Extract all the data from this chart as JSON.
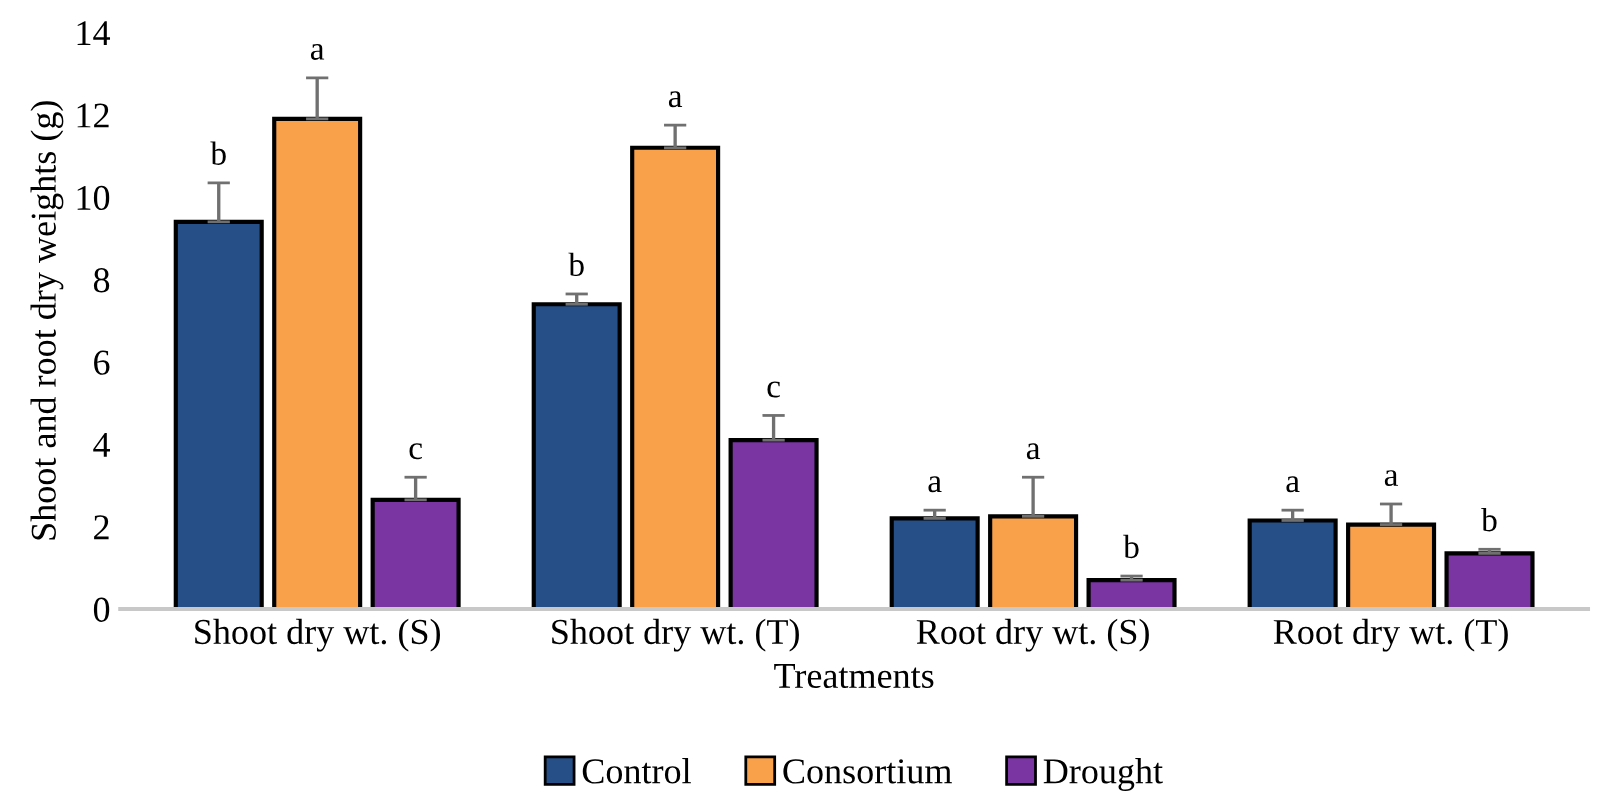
{
  "chart_data": {
    "type": "bar",
    "xlabel": "Treatments",
    "ylabel": "Shoot and root dry weights (g)",
    "categories": [
      "Shoot dry wt. (S)",
      "Shoot dry wt. (T)",
      "Root dry wt. (S)",
      "Root dry wt. (T)"
    ],
    "series": [
      {
        "name": "Control",
        "color": "#254f86",
        "values": [
          9.4,
          7.4,
          2.2,
          2.15
        ],
        "errors": [
          0.95,
          0.25,
          0.2,
          0.25
        ],
        "value_labels": [
          "b",
          "b",
          "a",
          "a"
        ]
      },
      {
        "name": "Consortium",
        "color": "#f9a04a",
        "values": [
          11.9,
          11.2,
          2.25,
          2.05
        ],
        "errors": [
          1.0,
          0.55,
          0.95,
          0.5
        ],
        "value_labels": [
          "a",
          "a",
          "a",
          "a"
        ]
      },
      {
        "name": "Drought",
        "color": "#7a35a3",
        "values": [
          2.65,
          4.1,
          0.7,
          1.35
        ],
        "errors": [
          0.55,
          0.6,
          0.1,
          0.1
        ],
        "value_labels": [
          "c",
          "c",
          "b",
          "b"
        ]
      }
    ],
    "ylim": [
      0,
      14
    ],
    "yticks": [
      0,
      2,
      4,
      6,
      8,
      10,
      12,
      14
    ],
    "grid": false,
    "legend": "bottom"
  }
}
